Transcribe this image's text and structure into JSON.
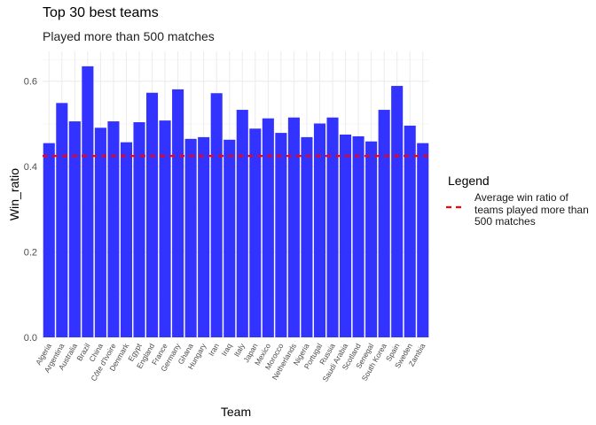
{
  "chart_data": {
    "type": "bar",
    "title": "Top 30 best teams",
    "subtitle": "Played more than 500 matches",
    "xlabel": "Team",
    "ylabel": "Win_ratio",
    "ylim": [
      0,
      0.67
    ],
    "y_ticks": [
      0.0,
      0.2,
      0.4,
      0.6
    ],
    "y_tick_labels": [
      "0.0",
      "0.2",
      "0.4",
      "0.6"
    ],
    "grid": true,
    "bar_color": "#3333FF",
    "categories": [
      "Algeria",
      "Argentina",
      "Australia",
      "Brazil",
      "China",
      "Côte d'Ivoire",
      "Denmark",
      "Egypt",
      "England",
      "France",
      "Germany",
      "Ghana",
      "Hungary",
      "Iran",
      "Iraq",
      "Italy",
      "Japan",
      "Mexico",
      "Morocco",
      "Netherlands",
      "Nigeria",
      "Portugal",
      "Russia",
      "Saudi Arabia",
      "Scotland",
      "Senegal",
      "South Korea",
      "Spain",
      "Sweden",
      "Zambia"
    ],
    "values": [
      0.455,
      0.549,
      0.506,
      0.635,
      0.491,
      0.506,
      0.457,
      0.504,
      0.573,
      0.508,
      0.581,
      0.465,
      0.469,
      0.572,
      0.463,
      0.533,
      0.489,
      0.513,
      0.479,
      0.515,
      0.469,
      0.501,
      0.515,
      0.475,
      0.471,
      0.459,
      0.533,
      0.589,
      0.496,
      0.455
    ],
    "reference_line": {
      "value": 0.425,
      "color": "#FF0000",
      "style": "dashed"
    },
    "legend": {
      "title": "Legend",
      "position": "right",
      "entries": [
        {
          "label": "Average win ratio of teams played more than 500 matches",
          "color": "#FF0000",
          "style": "dashed"
        }
      ]
    }
  }
}
